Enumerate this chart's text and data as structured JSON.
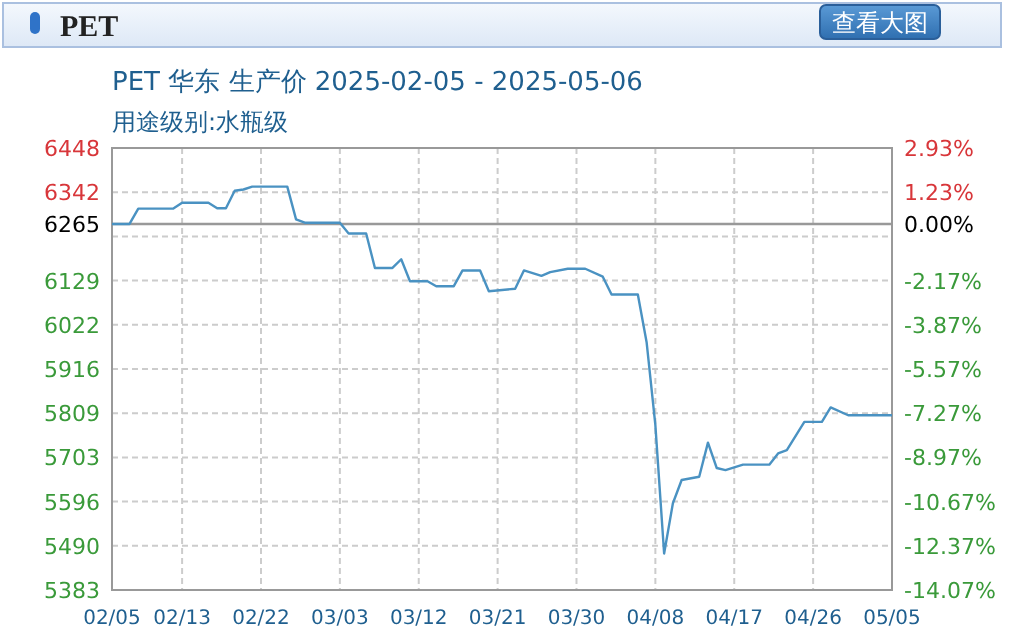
{
  "chart_data": {
    "type": "line",
    "title": "PET 华东 生产价 2025-02-05 - 2025-05-06",
    "subtitle": "用途级别:水瓶级",
    "annotations": [
      "PET",
      "查看大图"
    ],
    "x": [
      "2025-02-05",
      "2025-02-07",
      "2025-02-08",
      "2025-02-12",
      "2025-02-13",
      "2025-02-16",
      "2025-02-17",
      "2025-02-18",
      "2025-02-19",
      "2025-02-20",
      "2025-02-21",
      "2025-02-25",
      "2025-02-26",
      "2025-02-27",
      "2025-03-03",
      "2025-03-04",
      "2025-03-06",
      "2025-03-07",
      "2025-03-09",
      "2025-03-10",
      "2025-03-11",
      "2025-03-13",
      "2025-03-14",
      "2025-03-16",
      "2025-03-17",
      "2025-03-19",
      "2025-03-20",
      "2025-03-23",
      "2025-03-24",
      "2025-03-26",
      "2025-03-27",
      "2025-03-29",
      "2025-03-31",
      "2025-04-02",
      "2025-04-03",
      "2025-04-06",
      "2025-04-07",
      "2025-04-08",
      "2025-04-09",
      "2025-04-10",
      "2025-04-11",
      "2025-04-13",
      "2025-04-14",
      "2025-04-15",
      "2025-04-16",
      "2025-04-18",
      "2025-04-21",
      "2025-04-22",
      "2025-04-23",
      "2025-04-25",
      "2025-04-27",
      "2025-04-28",
      "2025-04-30",
      "2025-05-05"
    ],
    "series": [
      {
        "color": "#4a92c2",
        "values": [
          6265,
          6265,
          6302,
          6302,
          6316,
          6316,
          6303,
          6303,
          6345,
          6348,
          6355,
          6355,
          6276,
          6268,
          6268,
          6242,
          6242,
          6159,
          6159,
          6180,
          6127,
          6127,
          6115,
          6115,
          6153,
          6153,
          6103,
          6109,
          6153,
          6140,
          6149,
          6157,
          6157,
          6138,
          6095,
          6095,
          5980,
          5780,
          5471,
          5592,
          5648,
          5656,
          5738,
          5677,
          5672,
          5685,
          5685,
          5712,
          5720,
          5788,
          5788,
          5823,
          5804,
          5804
        ]
      }
    ],
    "xlim": [
      "2025-02-05",
      "2025-05-05"
    ],
    "xticks": [
      {
        "value": "2025-02-05",
        "label": "02/05"
      },
      {
        "value": "2025-02-13",
        "label": "02/13"
      },
      {
        "value": "2025-02-22",
        "label": "02/22"
      },
      {
        "value": "2025-03-03",
        "label": "03/03"
      },
      {
        "value": "2025-03-12",
        "label": "03/12"
      },
      {
        "value": "2025-03-21",
        "label": "03/21"
      },
      {
        "value": "2025-03-30",
        "label": "03/30"
      },
      {
        "value": "2025-04-08",
        "label": "04/08"
      },
      {
        "value": "2025-04-17",
        "label": "04/17"
      },
      {
        "value": "2025-04-26",
        "label": "04/26"
      },
      {
        "value": "2025-05-05",
        "label": "05/05"
      }
    ],
    "ylim": [
      5383,
      6448
    ],
    "yticks": [
      5383,
      {
        "value": 5489.5,
        "label": "5490"
      },
      5596,
      {
        "value": 5702.5,
        "label": "5703"
      },
      5809,
      {
        "value": 5915.5,
        "label": "5916"
      },
      6022,
      {
        "value": 6128.5,
        "label": "6129"
      },
      {
        "value": 6235,
        "label": null
      },
      6265,
      {
        "value": 6341.5,
        "label": "6342"
      },
      6448
    ],
    "y2lim": [
      -14.07,
      2.93
    ],
    "y2ticks": [
      {
        "value": -14.07,
        "label": "-14.07%"
      },
      {
        "value": -12.37,
        "label": "-12.37%"
      },
      {
        "value": -10.67,
        "label": "-10.67%"
      },
      {
        "value": -8.97,
        "label": "-8.97%"
      },
      {
        "value": -7.27,
        "label": "-7.27%"
      },
      {
        "value": -5.57,
        "label": "-5.57%"
      },
      {
        "value": -3.87,
        "label": "-3.87%"
      },
      {
        "value": -2.17,
        "label": "-2.17%"
      },
      {
        "value": 0,
        "label": "0.00%"
      },
      {
        "value": 1.23,
        "label": "1.23%"
      },
      {
        "value": 2.93,
        "label": "2.93%"
      }
    ],
    "ref_lines": [
      {
        "axis": "y",
        "value": 6265,
        "color": "#999999"
      }
    ],
    "grid": true,
    "marker": "none",
    "line_style": "solid"
  }
}
